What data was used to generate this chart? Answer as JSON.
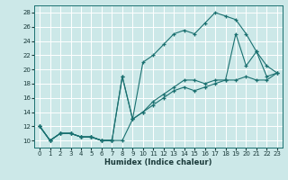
{
  "xlabel": "Humidex (Indice chaleur)",
  "bg_color": "#cce8e8",
  "line_color": "#1a7070",
  "grid_color": "#ffffff",
  "xlim": [
    -0.5,
    23.5
  ],
  "ylim": [
    9,
    29
  ],
  "yticks": [
    10,
    12,
    14,
    16,
    18,
    20,
    22,
    24,
    26,
    28
  ],
  "xticks": [
    0,
    1,
    2,
    3,
    4,
    5,
    6,
    7,
    8,
    9,
    10,
    11,
    12,
    13,
    14,
    15,
    16,
    17,
    18,
    19,
    20,
    21,
    22,
    23
  ],
  "line_bottom_x": [
    0,
    1,
    2,
    3,
    4,
    5,
    6,
    7
  ],
  "line_bottom_y": [
    12,
    10,
    11,
    11,
    10.5,
    10.5,
    10,
    10
  ],
  "line_upper_x": [
    0,
    1,
    2,
    3,
    4,
    5,
    6,
    7,
    8,
    9,
    10,
    11,
    12,
    13,
    14,
    15,
    16,
    17,
    18,
    19,
    20,
    21,
    22,
    23
  ],
  "line_upper_y": [
    12,
    10,
    11,
    11,
    10.5,
    10.5,
    10,
    10,
    19,
    13,
    21,
    22,
    23.5,
    25,
    25.5,
    25,
    26.5,
    28,
    27.5,
    27,
    25,
    22.5,
    20.5,
    19.5
  ],
  "line_mid_x": [
    0,
    1,
    2,
    3,
    4,
    5,
    6,
    7,
    8,
    9,
    10,
    11,
    12,
    13,
    14,
    15,
    16,
    17,
    18,
    19,
    20,
    21,
    22,
    23
  ],
  "line_mid_y": [
    12,
    10,
    11,
    11,
    10.5,
    10.5,
    10,
    10,
    19,
    13,
    14,
    15.5,
    16.5,
    17.5,
    18.5,
    18.5,
    18,
    18.5,
    18.5,
    25,
    20.5,
    22.5,
    19,
    19.5
  ],
  "line_straight_x": [
    0,
    1,
    2,
    3,
    4,
    5,
    6,
    7,
    8,
    9,
    10,
    11,
    12,
    13,
    14,
    15,
    16,
    17,
    18,
    19,
    20,
    21,
    22,
    23
  ],
  "line_straight_y": [
    12,
    10,
    11,
    11,
    10.5,
    10.5,
    10,
    10,
    10,
    13,
    14,
    15,
    16,
    17,
    17.5,
    17,
    17.5,
    18,
    18.5,
    18.5,
    19,
    18.5,
    18.5,
    19.5
  ]
}
